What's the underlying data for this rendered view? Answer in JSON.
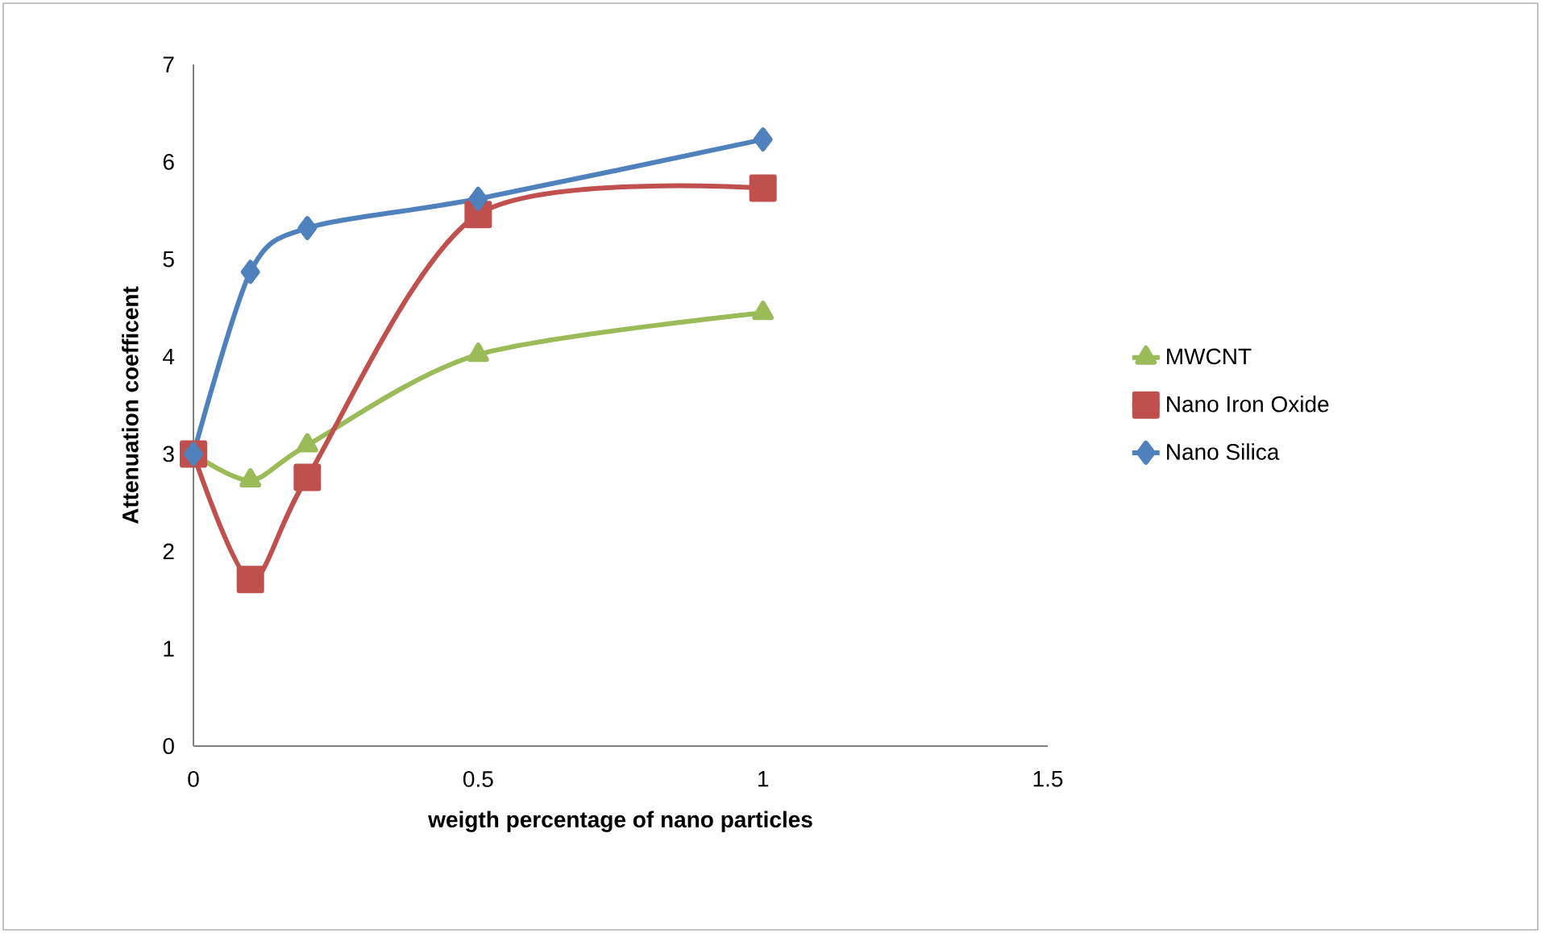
{
  "chart_data": {
    "type": "line",
    "xlabel": "weigth percentage of nano particles",
    "ylabel": "Attenuation coefficent",
    "xlim": [
      0,
      1.5
    ],
    "xticks": [
      0,
      0.5,
      1,
      1.5
    ],
    "ylim": [
      0,
      7
    ],
    "yticks": [
      0,
      1,
      2,
      3,
      4,
      5,
      6,
      7
    ],
    "legend": "right",
    "grid": false,
    "series": [
      {
        "name": "MWCNT",
        "color": "#9bbb59",
        "marker": "triangle",
        "x": [
          0,
          0.1,
          0.2,
          0.5,
          1
        ],
        "values": [
          3.0,
          2.73,
          3.09,
          4.02,
          4.45
        ]
      },
      {
        "name": "Nano Iron Oxide",
        "color": "#c0504d",
        "marker": "square",
        "x": [
          0,
          0.1,
          0.2,
          0.5,
          1
        ],
        "values": [
          3.0,
          1.71,
          2.76,
          5.46,
          5.73
        ]
      },
      {
        "name": "Nano Silica",
        "color": "#4f81bd",
        "marker": "diamond",
        "x": [
          0,
          0.1,
          0.2,
          0.5,
          1
        ],
        "values": [
          3.0,
          4.87,
          5.32,
          5.62,
          6.23
        ]
      }
    ]
  }
}
